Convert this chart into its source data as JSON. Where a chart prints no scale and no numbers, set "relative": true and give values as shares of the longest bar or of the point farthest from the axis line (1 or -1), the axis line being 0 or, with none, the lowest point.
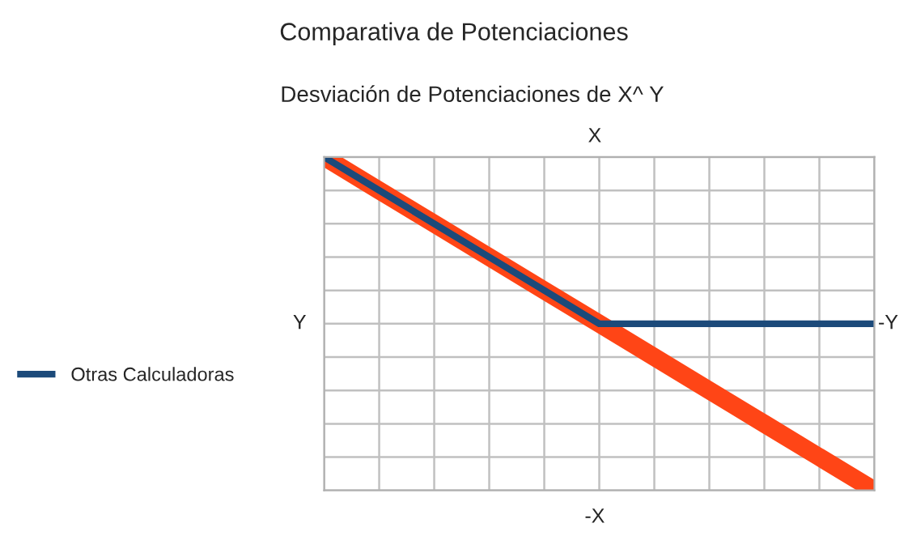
{
  "chart_data": {
    "type": "line",
    "title": "Comparativa de Potenciaciones",
    "subtitle": "Desviación de Potenciaciones de X^ Y",
    "xlabel": "-X",
    "x2label": "X",
    "ylabel": "Y",
    "y2label": "-Y",
    "relative": true,
    "grid": true,
    "legend": "left",
    "marker": "none",
    "line_style": "solid",
    "categories": [
      null,
      null,
      null,
      null,
      null,
      null,
      null,
      null,
      null,
      null,
      null
    ],
    "series": [
      {
        "color": "#ff4516",
        "values": [
          1,
          0.8,
          0.6,
          0.4,
          0.2,
          0,
          -0.2,
          -0.4,
          -0.6,
          -0.8,
          -1
        ]
      },
      {
        "name": "Otras Calculadoras",
        "color": "#1c4a7a",
        "values": [
          1,
          0.8,
          0.6,
          0.4,
          0.2,
          0,
          0,
          0,
          0,
          0,
          0
        ]
      }
    ]
  }
}
